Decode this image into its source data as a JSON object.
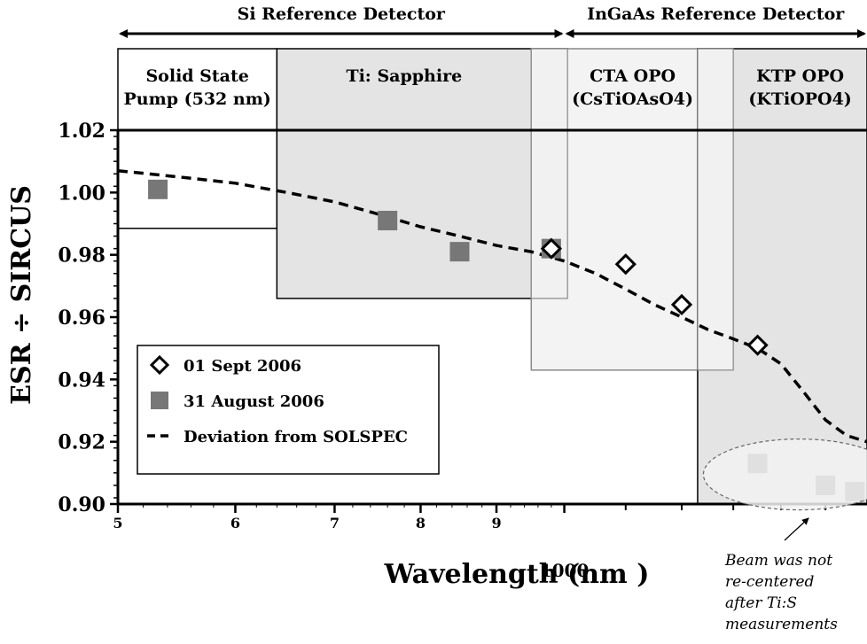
{
  "chart_data": {
    "type": "scatter",
    "title": "",
    "xlabel": "Wavelength (nm )",
    "ylabel": "ESR ÷ SIRCUS",
    "x_scale": "log",
    "xlim": [
      500,
      1600
    ],
    "ylim": [
      0.9,
      1.02
    ],
    "y_ticks": [
      "1.02",
      "1.00",
      "0.98",
      "0.96",
      "0.94",
      "0.92",
      "0.90"
    ],
    "y_tick_values": [
      1.02,
      1.0,
      0.98,
      0.96,
      0.94,
      0.92,
      0.9
    ],
    "x_major_ticks": [
      {
        "value": 500,
        "label": "5"
      },
      {
        "value": 600,
        "label": "6"
      },
      {
        "value": 700,
        "label": "7"
      },
      {
        "value": 800,
        "label": "8"
      },
      {
        "value": 900,
        "label": "9"
      },
      {
        "value": 1000,
        "label": "1000"
      }
    ],
    "x_minor_ticks": [
      1100,
      1200,
      1300,
      1400,
      1500
    ],
    "grid": false,
    "legend_position": "bottom-left",
    "legend": [
      {
        "label": "01 Sept 2006",
        "marker": "open-diamond"
      },
      {
        "label": "31 August 2006",
        "marker": "filled-square"
      },
      {
        "label": "Deviation from SOLSPEC",
        "marker": "dashed-line"
      }
    ],
    "series": [
      {
        "name": "01 Sept 2006",
        "marker": "open-diamond",
        "color": "#000000",
        "points": [
          {
            "x": 980,
            "y": 0.982
          },
          {
            "x": 1100,
            "y": 0.977
          },
          {
            "x": 1200,
            "y": 0.964
          },
          {
            "x": 1350,
            "y": 0.951
          }
        ]
      },
      {
        "name": "31 August 2006",
        "marker": "filled-square",
        "color": "#777777",
        "points": [
          {
            "x": 532,
            "y": 1.001
          },
          {
            "x": 760,
            "y": 0.991
          },
          {
            "x": 850,
            "y": 0.981
          },
          {
            "x": 980,
            "y": 0.982
          },
          {
            "x": 1350,
            "y": 0.913
          },
          {
            "x": 1500,
            "y": 0.906
          },
          {
            "x": 1570,
            "y": 0.904
          }
        ]
      },
      {
        "name": "Deviation from SOLSPEC",
        "style": "dashed",
        "color": "#000000",
        "points": [
          {
            "x": 500,
            "y": 1.007
          },
          {
            "x": 550,
            "y": 1.005
          },
          {
            "x": 600,
            "y": 1.003
          },
          {
            "x": 650,
            "y": 1.0
          },
          {
            "x": 700,
            "y": 0.997
          },
          {
            "x": 750,
            "y": 0.993
          },
          {
            "x": 800,
            "y": 0.989
          },
          {
            "x": 850,
            "y": 0.986
          },
          {
            "x": 900,
            "y": 0.983
          },
          {
            "x": 950,
            "y": 0.981
          },
          {
            "x": 1000,
            "y": 0.978
          },
          {
            "x": 1050,
            "y": 0.974
          },
          {
            "x": 1100,
            "y": 0.969
          },
          {
            "x": 1150,
            "y": 0.964
          },
          {
            "x": 1200,
            "y": 0.96
          },
          {
            "x": 1250,
            "y": 0.956
          },
          {
            "x": 1300,
            "y": 0.953
          },
          {
            "x": 1350,
            "y": 0.95
          },
          {
            "x": 1400,
            "y": 0.945
          },
          {
            "x": 1450,
            "y": 0.936
          },
          {
            "x": 1500,
            "y": 0.927
          },
          {
            "x": 1550,
            "y": 0.922
          },
          {
            "x": 1600,
            "y": 0.92
          }
        ]
      }
    ],
    "detector_ranges": [
      {
        "label": "Si Reference Detector",
        "x_start": 500,
        "x_end": 1000
      },
      {
        "label": "InGaAs Reference Detector",
        "x_start": 1000,
        "x_end": 1600
      }
    ],
    "source_boxes": [
      {
        "label_lines": [
          "Solid State",
          "Pump (532 nm)"
        ],
        "x_start": 500,
        "x_end": 640,
        "y_low": 0.9885,
        "fill": "#ffffff",
        "stroke": "#000000"
      },
      {
        "label_lines": [
          "Ti: Sapphire"
        ],
        "x_start": 640,
        "x_end": 1005,
        "y_low": 0.966,
        "fill": "#e4e4e4",
        "stroke": "#000000"
      },
      {
        "label_lines": [
          "CTA OPO",
          "(CsTiOAsO4)"
        ],
        "x_start": 950,
        "x_end": 1300,
        "y_low": 0.943,
        "fill": "#f3f3f3",
        "stroke": "#888888"
      },
      {
        "label_lines": [
          "KTP OPO",
          "(KTiOPO4)"
        ],
        "x_start": 1230,
        "x_end": 1600,
        "y_low": 0.9,
        "fill": "#e4e4e4",
        "stroke": "#000000"
      }
    ],
    "annotation": {
      "lines": [
        "Beam was not",
        "re-centered",
        "after Ti:S",
        "measurements"
      ]
    }
  }
}
